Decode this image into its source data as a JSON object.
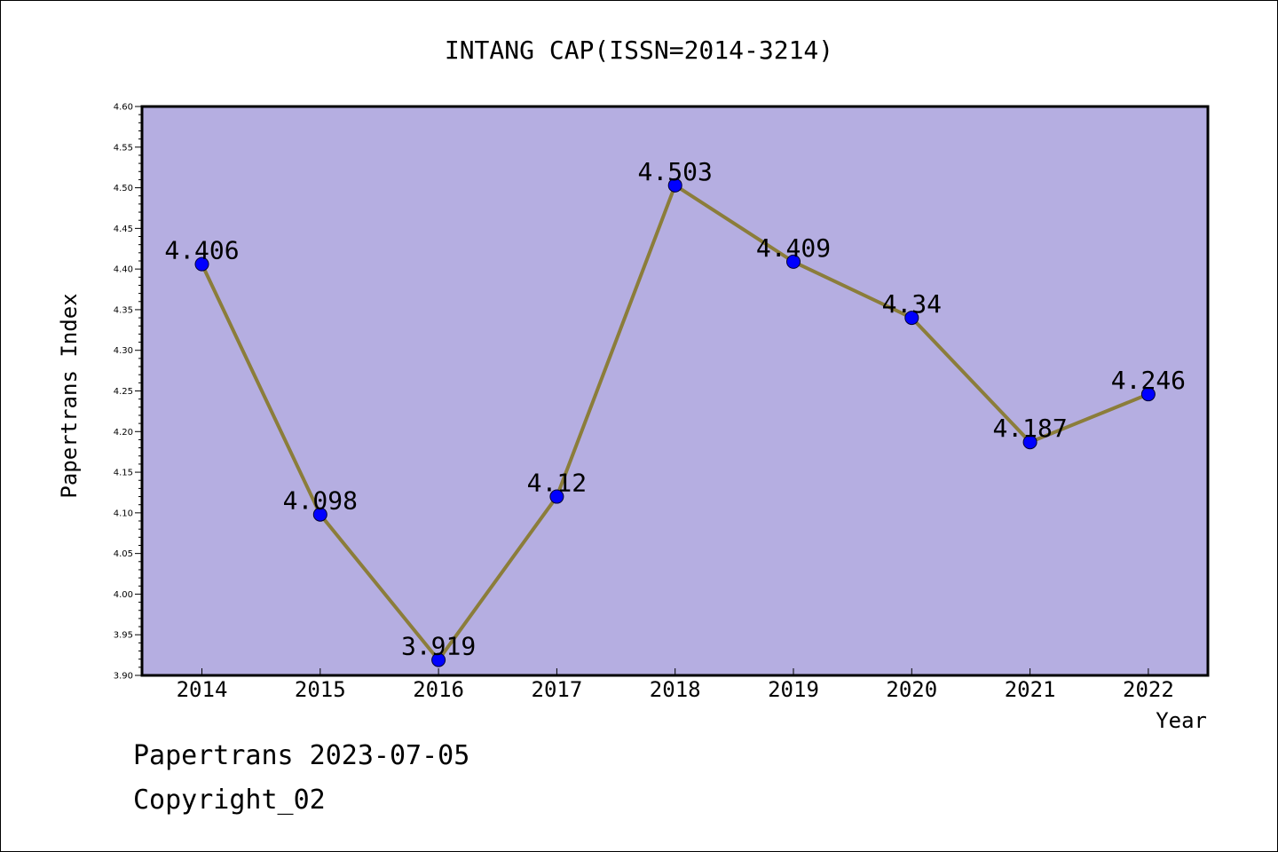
{
  "chart_data": {
    "type": "line",
    "title": "INTANG CAP(ISSN=2014-3214)",
    "xlabel": "Year",
    "ylabel": "Papertrans Index",
    "categories": [
      "2014",
      "2015",
      "2016",
      "2017",
      "2018",
      "2019",
      "2020",
      "2021",
      "2022"
    ],
    "series": [
      {
        "values": [
          4.406,
          4.098,
          3.919,
          4.12,
          4.503,
          4.409,
          4.34,
          4.187,
          4.246
        ],
        "labels": [
          "4.406",
          "4.098",
          "3.919",
          "4.12",
          "4.503",
          "4.409",
          "4.34",
          "4.187",
          "4.246"
        ]
      }
    ],
    "ylim": [
      3.9,
      4.6
    ],
    "yticks": [
      "3.90",
      "3.95",
      "4.00",
      "4.05",
      "4.10",
      "4.15",
      "4.20",
      "4.25",
      "4.30",
      "4.35",
      "4.40",
      "4.45",
      "4.50",
      "4.55",
      "4.60"
    ],
    "grid": false,
    "colors": {
      "plot_background": "#b5aee1",
      "line": "#8b7d3a",
      "marker": "#0000ff"
    }
  },
  "footer": {
    "source": "Papertrans 2023-07-05",
    "copyright": "Copyright_02"
  }
}
